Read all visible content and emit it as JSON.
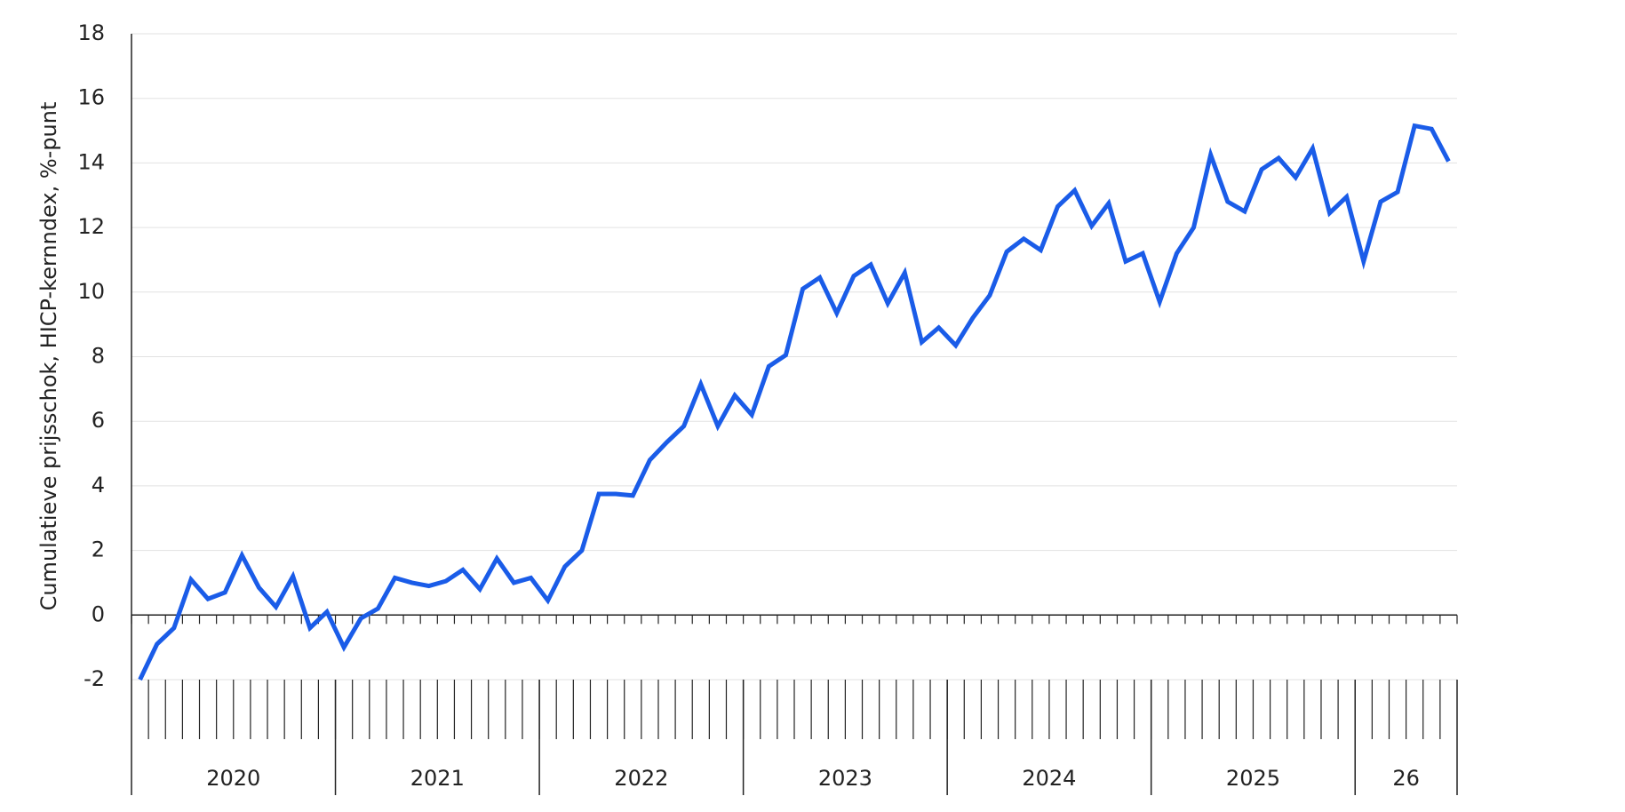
{
  "chart_data": {
    "type": "line",
    "y_label": "Cumulatieve prijsschok, HICP-kernndex, %-punt",
    "year_groups": [
      {
        "label": "2020",
        "months": 12
      },
      {
        "label": "2021",
        "months": 12
      },
      {
        "label": "2022",
        "months": 12
      },
      {
        "label": "2023",
        "months": 12
      },
      {
        "label": "2024",
        "months": 12
      },
      {
        "label": "2025",
        "months": 12
      },
      {
        "label": "26",
        "months": 6
      }
    ],
    "series": [
      {
        "color": "#1a5ce8",
        "values": [
          -2,
          -0.9,
          -0.4,
          1.1,
          0.5,
          0.7,
          1.85,
          0.85,
          0.25,
          1.2,
          -0.4,
          0.1,
          -1.0,
          -0.1,
          0.2,
          1.15,
          1.0,
          0.9,
          1.05,
          1.4,
          0.8,
          1.75,
          1.0,
          1.15,
          0.45,
          1.5,
          2.0,
          3.75,
          3.75,
          3.7,
          4.8,
          5.35,
          5.85,
          7.15,
          5.85,
          6.8,
          6.2,
          7.7,
          8.05,
          10.1,
          10.45,
          9.35,
          10.5,
          10.85,
          9.65,
          10.6,
          8.45,
          8.9,
          8.35,
          9.2,
          9.9,
          11.25,
          11.65,
          11.3,
          12.65,
          13.15,
          12.05,
          12.75,
          10.95,
          11.2,
          9.7,
          11.2,
          12.0,
          14.25,
          12.8,
          12.5,
          13.8,
          14.15,
          13.55,
          14.45,
          12.45,
          12.95,
          10.95,
          12.8,
          13.1,
          15.15,
          15.05,
          14.05
        ]
      }
    ],
    "ylim": [
      -2,
      18
    ],
    "yticks": [
      -2,
      0,
      2,
      4,
      6,
      8,
      10,
      12,
      14,
      16,
      18
    ],
    "grid": true
  }
}
